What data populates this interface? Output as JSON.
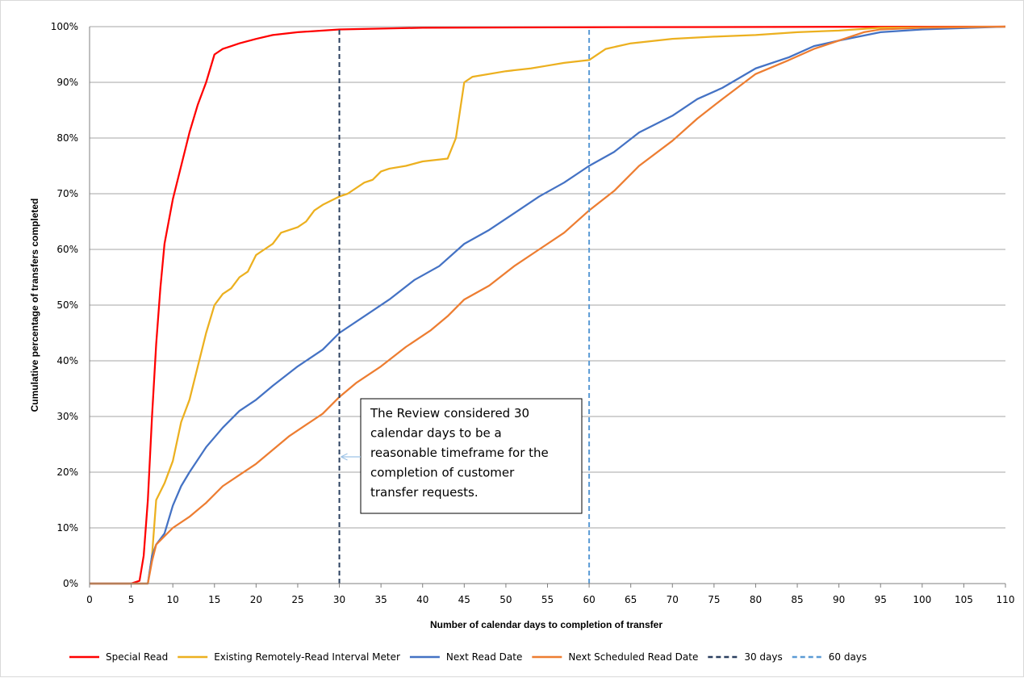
{
  "chart_data": {
    "type": "line",
    "xlabel": "Number of calendar days to completion of transfer",
    "ylabel": "Cumulative percentage of transfers completed",
    "xlim": [
      0,
      110
    ],
    "ylim": [
      0,
      100
    ],
    "x_ticks": [
      "0",
      "5",
      "10",
      "15",
      "20",
      "25",
      "30",
      "35",
      "40",
      "45",
      "50",
      "55",
      "60",
      "65",
      "70",
      "75",
      "80",
      "85",
      "90",
      "95",
      "100",
      "105",
      "110"
    ],
    "y_ticks": [
      "0%",
      "10%",
      "20%",
      "30%",
      "40%",
      "50%",
      "60%",
      "70%",
      "80%",
      "90%",
      "100%"
    ],
    "grid": "horizontal",
    "legend_position": "bottom",
    "series": [
      {
        "name": "Special Read",
        "color": "#ff0000",
        "style": "solid",
        "points": [
          [
            0,
            0
          ],
          [
            5,
            0
          ],
          [
            6,
            0.5
          ],
          [
            6.5,
            5
          ],
          [
            7,
            15
          ],
          [
            7.5,
            30
          ],
          [
            8,
            43
          ],
          [
            8.5,
            53
          ],
          [
            9,
            61
          ],
          [
            10,
            69
          ],
          [
            11,
            75
          ],
          [
            12,
            81
          ],
          [
            13,
            86
          ],
          [
            14,
            90
          ],
          [
            15,
            95
          ],
          [
            16,
            96
          ],
          [
            17,
            96.5
          ],
          [
            18,
            97
          ],
          [
            20,
            97.8
          ],
          [
            22,
            98.5
          ],
          [
            25,
            99
          ],
          [
            30,
            99.5
          ],
          [
            40,
            99.8
          ],
          [
            60,
            99.9
          ],
          [
            110,
            100
          ]
        ]
      },
      {
        "name": "Existing Remotely-Read Interval Meter",
        "color": "#ecb01f",
        "style": "solid",
        "points": [
          [
            0,
            0
          ],
          [
            7,
            0
          ],
          [
            7.5,
            5
          ],
          [
            8,
            15
          ],
          [
            9,
            18
          ],
          [
            10,
            22
          ],
          [
            11,
            29
          ],
          [
            12,
            33
          ],
          [
            13,
            39
          ],
          [
            14,
            45
          ],
          [
            15,
            50
          ],
          [
            16,
            52
          ],
          [
            17,
            53
          ],
          [
            18,
            55
          ],
          [
            19,
            56
          ],
          [
            20,
            59
          ],
          [
            21,
            60
          ],
          [
            22,
            61
          ],
          [
            23,
            63
          ],
          [
            25,
            64
          ],
          [
            26,
            65
          ],
          [
            27,
            67
          ],
          [
            28,
            68
          ],
          [
            30,
            69.5
          ],
          [
            31,
            70
          ],
          [
            33,
            72
          ],
          [
            34,
            72.5
          ],
          [
            35,
            74
          ],
          [
            36,
            74.5
          ],
          [
            38,
            75
          ],
          [
            40,
            75.8
          ],
          [
            43,
            76.3
          ],
          [
            44,
            80
          ],
          [
            45,
            90
          ],
          [
            46,
            91
          ],
          [
            50,
            92
          ],
          [
            53,
            92.5
          ],
          [
            55,
            93
          ],
          [
            57,
            93.5
          ],
          [
            60,
            94
          ],
          [
            62,
            96
          ],
          [
            65,
            97
          ],
          [
            70,
            97.8
          ],
          [
            75,
            98.2
          ],
          [
            80,
            98.5
          ],
          [
            85,
            99
          ],
          [
            90,
            99.3
          ],
          [
            95,
            99.8
          ],
          [
            110,
            100
          ]
        ]
      },
      {
        "name": "Next Read Date",
        "color": "#4472c4",
        "style": "solid",
        "points": [
          [
            0,
            0
          ],
          [
            7,
            0
          ],
          [
            7.5,
            5
          ],
          [
            8,
            7
          ],
          [
            9,
            9
          ],
          [
            10,
            14
          ],
          [
            11,
            17.5
          ],
          [
            12,
            20
          ],
          [
            14,
            24.5
          ],
          [
            16,
            28
          ],
          [
            18,
            31
          ],
          [
            20,
            33
          ],
          [
            22,
            35.5
          ],
          [
            25,
            39
          ],
          [
            28,
            42
          ],
          [
            30,
            45
          ],
          [
            33,
            48
          ],
          [
            36,
            51
          ],
          [
            39,
            54.5
          ],
          [
            42,
            57
          ],
          [
            45,
            61
          ],
          [
            48,
            63.5
          ],
          [
            51,
            66.5
          ],
          [
            54,
            69.5
          ],
          [
            57,
            72
          ],
          [
            60,
            75
          ],
          [
            63,
            77.5
          ],
          [
            66,
            81
          ],
          [
            70,
            84
          ],
          [
            73,
            87
          ],
          [
            76,
            89
          ],
          [
            80,
            92.5
          ],
          [
            84,
            94.5
          ],
          [
            87,
            96.5
          ],
          [
            90,
            97.5
          ],
          [
            95,
            99
          ],
          [
            100,
            99.5
          ],
          [
            110,
            100
          ]
        ]
      },
      {
        "name": "Next Scheduled Read Date",
        "color": "#ed7d31",
        "style": "solid",
        "points": [
          [
            0,
            0
          ],
          [
            7,
            0
          ],
          [
            7.5,
            4
          ],
          [
            8,
            7
          ],
          [
            10,
            10
          ],
          [
            12,
            12
          ],
          [
            14,
            14.5
          ],
          [
            16,
            17.5
          ],
          [
            18,
            19.5
          ],
          [
            20,
            21.5
          ],
          [
            22,
            24
          ],
          [
            24,
            26.5
          ],
          [
            26,
            28.5
          ],
          [
            28,
            30.5
          ],
          [
            30,
            33.5
          ],
          [
            32,
            36
          ],
          [
            35,
            39
          ],
          [
            38,
            42.5
          ],
          [
            41,
            45.5
          ],
          [
            43,
            48
          ],
          [
            45,
            51
          ],
          [
            48,
            53.5
          ],
          [
            51,
            57
          ],
          [
            54,
            60
          ],
          [
            57,
            63
          ],
          [
            60,
            67
          ],
          [
            63,
            70.5
          ],
          [
            66,
            75
          ],
          [
            70,
            79.5
          ],
          [
            73,
            83.5
          ],
          [
            76,
            87
          ],
          [
            80,
            91.5
          ],
          [
            84,
            94
          ],
          [
            87,
            96
          ],
          [
            90,
            97.5
          ],
          [
            93,
            99
          ],
          [
            95,
            99.5
          ],
          [
            100,
            99.8
          ],
          [
            110,
            100
          ]
        ]
      },
      {
        "name": "30 days",
        "color": "#2a3f5f",
        "style": "dashed",
        "points": [
          [
            30,
            0
          ],
          [
            30,
            100
          ]
        ]
      },
      {
        "name": "60 days",
        "color": "#5b9bd5",
        "style": "dashed",
        "points": [
          [
            60,
            0
          ],
          [
            60,
            100
          ]
        ]
      }
    ],
    "annotation": {
      "lines": [
        "The Review considered 30",
        "calendar days to be a",
        "reasonable timeframe for the",
        "completion of customer",
        "transfer requests."
      ],
      "arrow_to_x": 30
    }
  }
}
